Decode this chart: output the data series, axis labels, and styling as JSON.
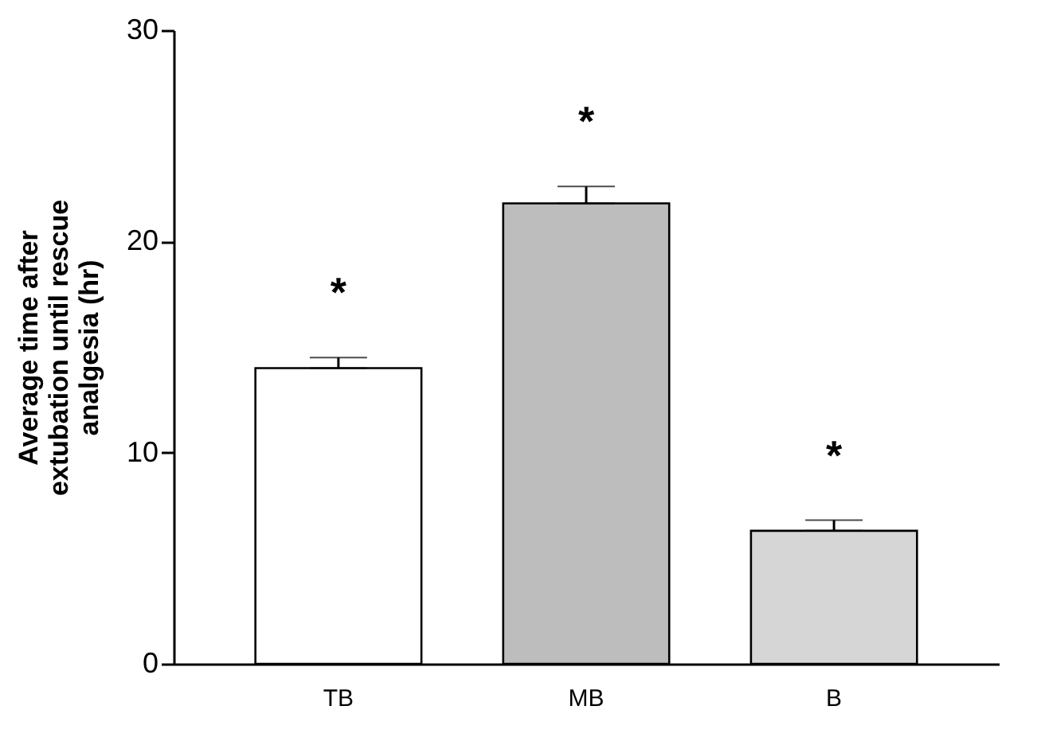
{
  "chart_data": {
    "type": "bar",
    "ylabel": "Average time after extubation until rescue analgesia (hr)",
    "categories": [
      "TB",
      "MB",
      "B"
    ],
    "values": [
      14.0,
      21.8,
      6.3
    ],
    "colors": [
      "#ffffff",
      "#bdbdbd",
      "#d6d6d6"
    ],
    "errors": [
      [
        14.0,
        14.5
      ],
      [
        21.8,
        22.6
      ],
      [
        6.3,
        6.8
      ]
    ],
    "ylim": [
      0,
      30
    ],
    "yticks": [
      0,
      10,
      20,
      30
    ],
    "grid": false,
    "annotations": [
      "*",
      "*",
      "*"
    ]
  }
}
